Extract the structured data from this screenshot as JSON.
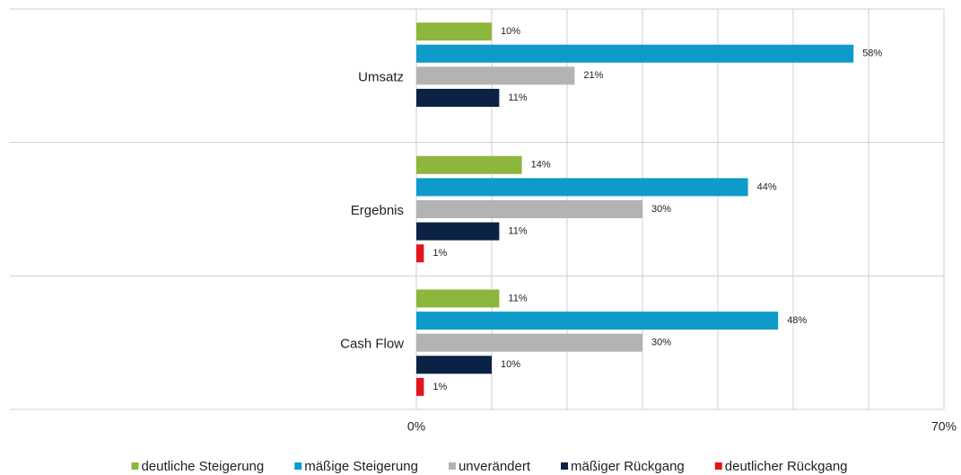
{
  "chart_data": {
    "type": "bar",
    "orientation": "horizontal",
    "categories": [
      "Umsatz",
      "Ergebnis",
      "Cash Flow"
    ],
    "series": [
      {
        "name": "deutliche Steigerung",
        "color": "#8db63c",
        "values": [
          10,
          14,
          11
        ],
        "value_labels": [
          "10%",
          "14%",
          "11%"
        ]
      },
      {
        "name": "mäßige Steigerung",
        "color": "#0e9bc9",
        "values": [
          58,
          44,
          48
        ],
        "value_labels": [
          "58%",
          "44%",
          "48%"
        ]
      },
      {
        "name": "unverändert",
        "color": "#b3b3b3",
        "values": [
          21,
          30,
          30
        ],
        "value_labels": [
          "21%",
          "30%",
          "30%"
        ]
      },
      {
        "name": "mäßiger Rückgang",
        "color": "#0b2244",
        "values": [
          11,
          11,
          10
        ],
        "value_labels": [
          "11%",
          "11%",
          "10%"
        ]
      },
      {
        "name": "deutlicher Rückgang",
        "color": "#e2151f",
        "values": [
          null,
          1,
          1
        ],
        "value_labels": [
          null,
          "1%",
          "1%"
        ]
      }
    ],
    "xlim": [
      0,
      70
    ],
    "xticks": [
      {
        "value": 0,
        "label": "0%"
      },
      {
        "value": 70,
        "label": "70%"
      }
    ],
    "xgrid": [
      10,
      20,
      30,
      40,
      50,
      60
    ],
    "grid": true,
    "legend": "bottom"
  }
}
